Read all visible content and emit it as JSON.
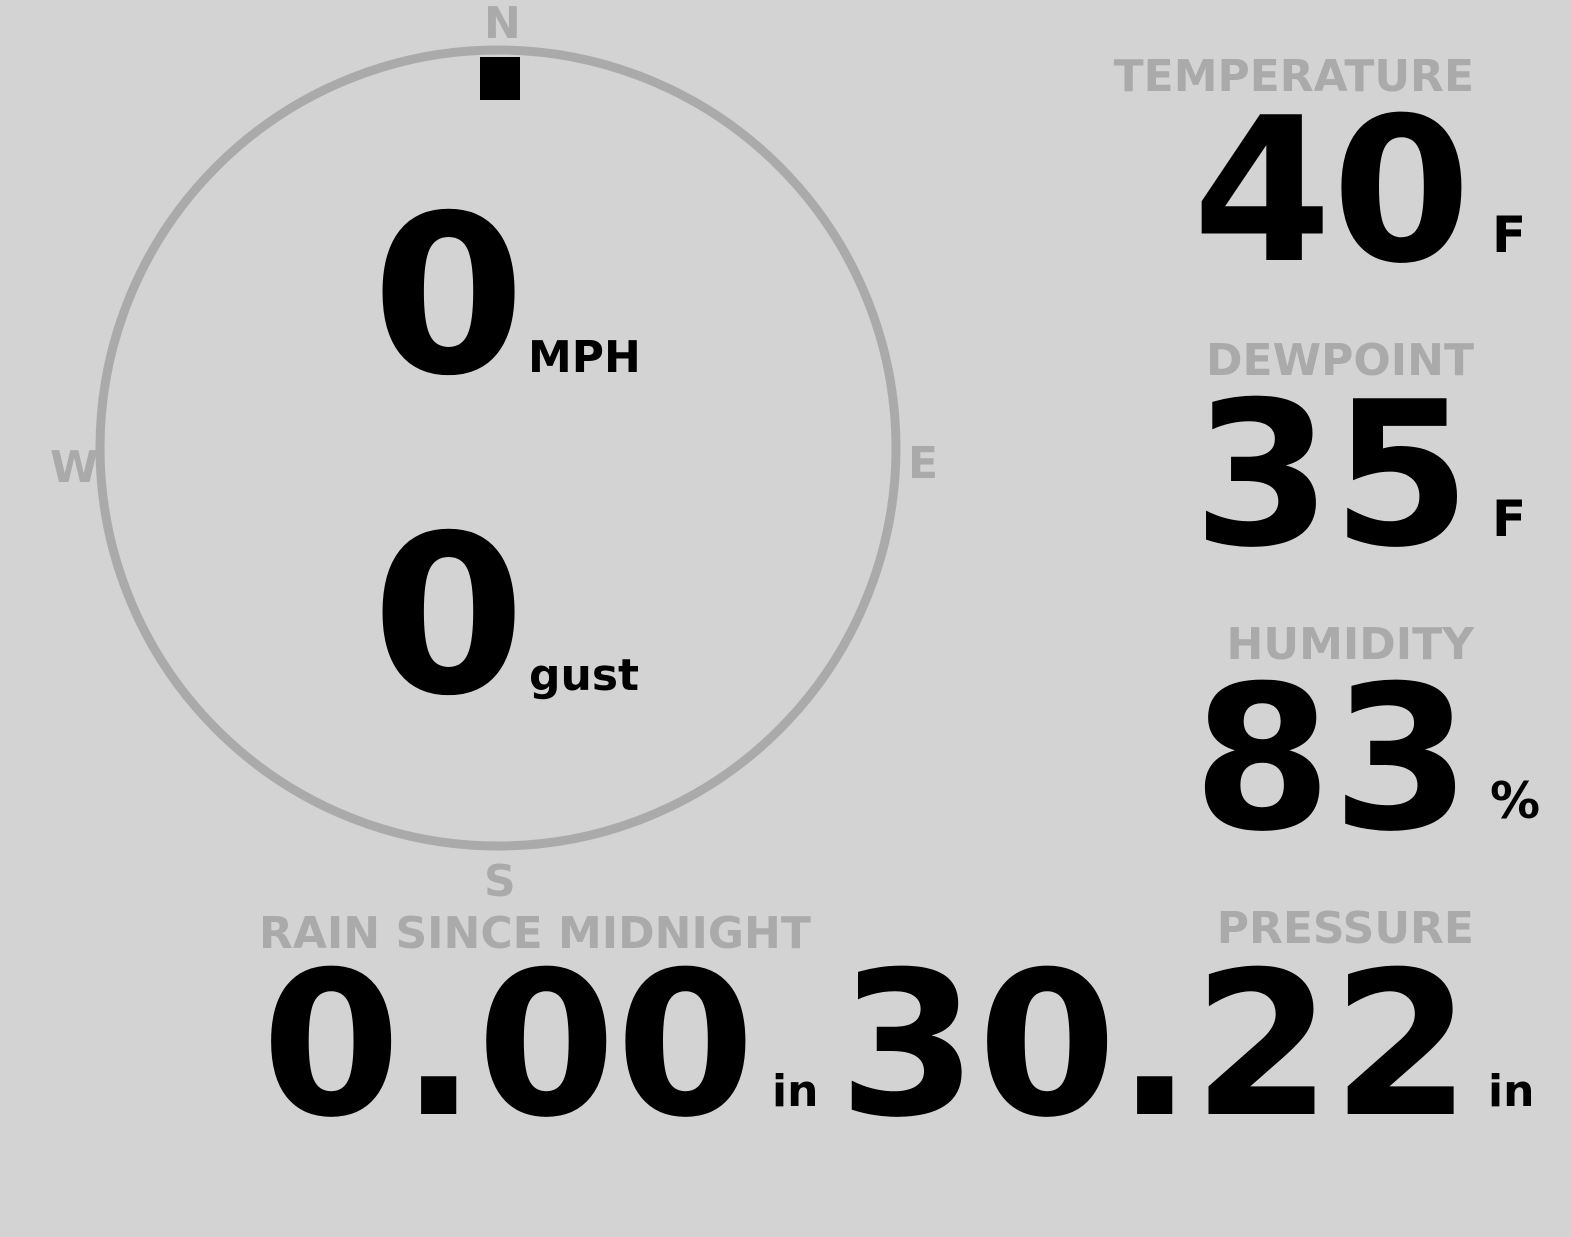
{
  "compass": {
    "north": "N",
    "south": "S",
    "east": "E",
    "west": "W",
    "wind_direction_deg": 0,
    "wind_speed": "0",
    "wind_speed_unit": "MPH",
    "gust": "0",
    "gust_unit": "gust",
    "colors": {
      "ring": "#aaaaaa",
      "marker": "#000000"
    }
  },
  "temperature": {
    "label": "TEMPERATURE",
    "value": "40",
    "unit": "F"
  },
  "dewpoint": {
    "label": "DEWPOINT",
    "value": "35",
    "unit": "F"
  },
  "humidity": {
    "label": "HUMIDITY",
    "value": "83",
    "unit": "%"
  },
  "rain": {
    "label": "RAIN SINCE MIDNIGHT",
    "value": "0.00",
    "unit": "in"
  },
  "pressure": {
    "label": "PRESSURE",
    "value": "30.22",
    "unit": "in"
  },
  "colors": {
    "background": "#d3d3d3",
    "label": "#aaaaaa",
    "value": "#000000"
  }
}
